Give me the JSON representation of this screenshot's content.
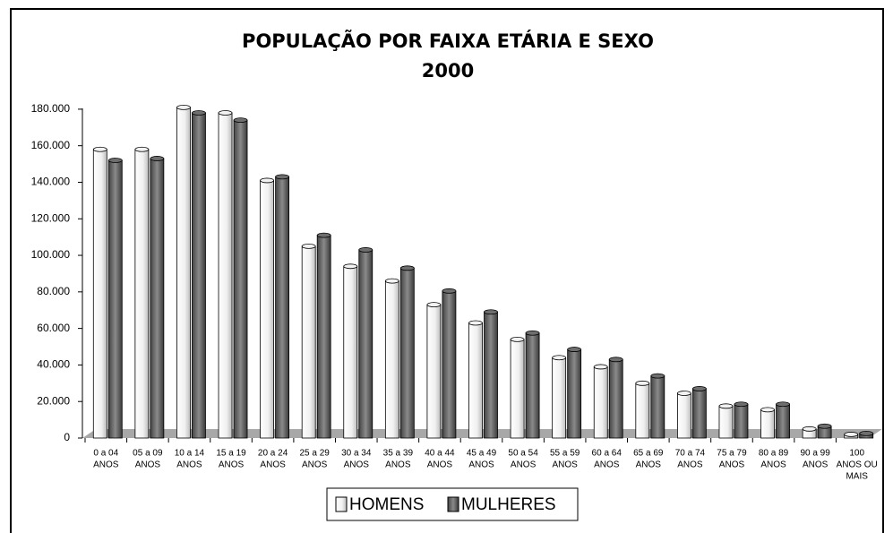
{
  "chart_data": {
    "type": "bar",
    "title": [
      "POPULAÇÃO POR FAIXA ETÁRIA E SEXO",
      "2000"
    ],
    "categories": [
      [
        "0 a 04",
        "ANOS"
      ],
      [
        "05 a 09",
        "ANOS"
      ],
      [
        "10 a 14",
        "ANOS"
      ],
      [
        "15 a 19",
        "ANOS"
      ],
      [
        "20 a 24",
        "ANOS"
      ],
      [
        "25 a 29",
        "ANOS"
      ],
      [
        "30 a 34",
        "ANOS"
      ],
      [
        "35 a 39",
        "ANOS"
      ],
      [
        "40 a 44",
        "ANOS"
      ],
      [
        "45 a 49",
        "ANOS"
      ],
      [
        "50 a 54",
        "ANOS"
      ],
      [
        "55 a 59",
        "ANOS"
      ],
      [
        "60 a 64",
        "ANOS"
      ],
      [
        "65 a 69",
        "ANOS"
      ],
      [
        "70 a 74",
        "ANOS"
      ],
      [
        "75 a 79",
        "ANOS"
      ],
      [
        "80 a 89",
        "ANOS"
      ],
      [
        "90 a 99",
        "ANOS"
      ],
      [
        "100",
        "ANOS OU",
        "MAIS"
      ]
    ],
    "series": [
      {
        "name": "HOMENS",
        "color": "#f2f2f2",
        "values": [
          158000,
          158000,
          181000,
          178000,
          141000,
          105000,
          94000,
          86000,
          73000,
          63000,
          54000,
          44000,
          39000,
          30000,
          24500,
          17500,
          15500,
          5000,
          2000
        ]
      },
      {
        "name": "MULHERES",
        "color": "#6e6e6e",
        "values": [
          152000,
          153000,
          178000,
          174000,
          143000,
          111000,
          103000,
          93000,
          80500,
          69000,
          57500,
          48500,
          43000,
          34000,
          27000,
          18500,
          18500,
          6500,
          2500
        ]
      }
    ],
    "ylim": [
      0,
      190000
    ],
    "yticks": [
      0,
      {
        "value": 20000,
        "label": "20.000"
      },
      {
        "value": 40000,
        "label": "40.000"
      },
      {
        "value": 60000,
        "label": "60.000"
      },
      {
        "value": 80000,
        "label": "80.000"
      },
      {
        "value": 100000,
        "label": "100.000"
      },
      {
        "value": 120000,
        "label": "120.000"
      },
      {
        "value": 140000,
        "label": "140.000"
      },
      {
        "value": 160000,
        "label": "160.000"
      },
      {
        "value": 180000,
        "label": "180.000"
      }
    ],
    "legend": "bottom"
  }
}
